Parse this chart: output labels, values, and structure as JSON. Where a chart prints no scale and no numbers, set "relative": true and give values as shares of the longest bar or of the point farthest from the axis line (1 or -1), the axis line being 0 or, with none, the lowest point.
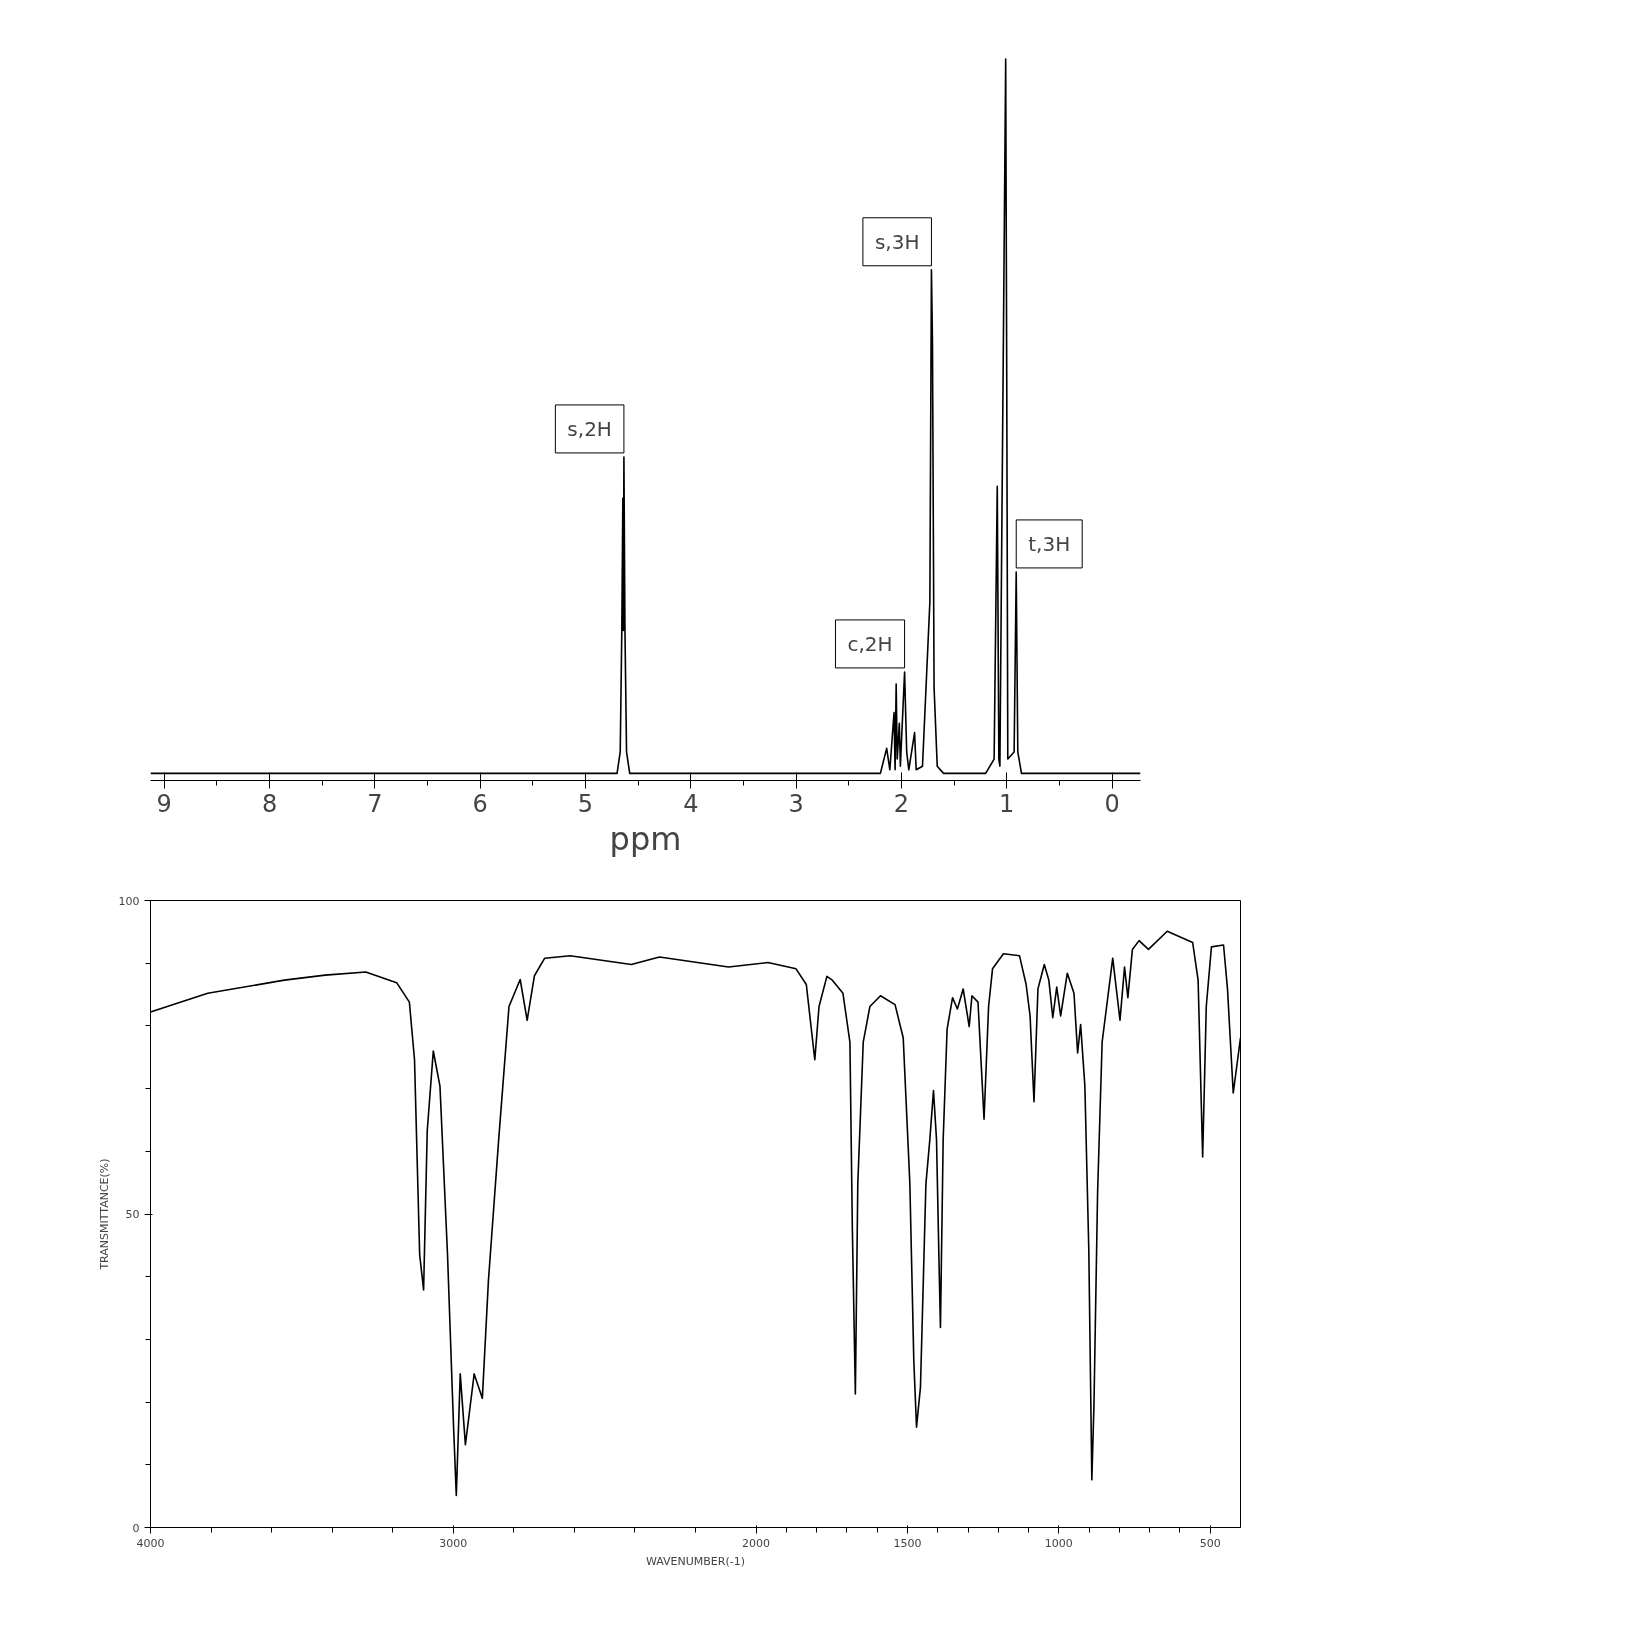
{
  "chart_data": [
    {
      "type": "line",
      "relative": true,
      "xlabel": "ppm",
      "xlim": [
        9.13,
        -0.27
      ],
      "xticks": [
        9,
        {
          "value": 8.5,
          "label": null
        },
        8,
        {
          "value": 7.5,
          "label": null
        },
        7,
        {
          "value": 6.5,
          "label": null
        },
        6,
        {
          "value": 5.5,
          "label": null
        },
        5,
        {
          "value": 4.5,
          "label": null
        },
        4,
        {
          "value": 3.5,
          "label": null
        },
        3,
        {
          "value": 2.5,
          "label": null
        },
        2,
        {
          "value": 1.5,
          "label": null
        },
        1,
        {
          "value": 0.5,
          "label": null
        },
        0
      ],
      "grid": false,
      "line_style": "solid",
      "series": [
        {
          "color": "#000000",
          "x": [
            9.13,
            4.7,
            4.67,
            4.655,
            4.645,
            4.64,
            4.635,
            4.625,
            4.61,
            4.58,
            2.2,
            2.14,
            2.11,
            2.07,
            2.06,
            2.05,
            2.04,
            2.02,
            2.01,
            1.97,
            1.95,
            1.93,
            1.875,
            1.86,
            1.8,
            1.73,
            1.715,
            1.705,
            1.69,
            1.66,
            1.6,
            1.2,
            1.12,
            1.09,
            1.075,
            1.065,
            1.01,
            1.0,
            0.99,
            0.93,
            0.91,
            0.895,
            0.86,
            -0.27
          ],
          "values": [
            0,
            0,
            0.03,
            0.2,
            0.385,
            0.2,
            0.443,
            0.2,
            0.03,
            0,
            0,
            0.035,
            0.005,
            0.085,
            0.005,
            0.125,
            0.02,
            0.07,
            0.01,
            0.142,
            0.03,
            0.005,
            0.057,
            0.005,
            0.01,
            0.24,
            0.705,
            0.6,
            0.12,
            0.01,
            0,
            0,
            0.02,
            0.402,
            0.02,
            0.01,
            1.0,
            0.55,
            0.02,
            0.03,
            0.282,
            0.03,
            0,
            0
          ]
        }
      ],
      "annotations": [
        {
          "text": "s,2H",
          "x": 4.635,
          "y": 0.443
        },
        {
          "text": "c,2H",
          "x": 1.97,
          "y": 0.142
        },
        {
          "text": "s,3H",
          "x": 1.715,
          "y": 0.705
        },
        {
          "text": "t,3H",
          "x": 0.91,
          "y": 0.282
        }
      ]
    },
    {
      "type": "line",
      "xlabel": "WAVENUMBER(-1)",
      "ylabel": "TRANSMITTANCE(%)",
      "xlim": [
        4000,
        400
      ],
      "ylim": [
        0,
        100
      ],
      "xticks": [
        4000,
        {
          "value": 3800,
          "label": null
        },
        {
          "value": 3600,
          "label": null
        },
        {
          "value": 3400,
          "label": null
        },
        {
          "value": 3200,
          "label": null
        },
        3000,
        {
          "value": 2800,
          "label": null
        },
        {
          "value": 2600,
          "label": null
        },
        {
          "value": 2400,
          "label": null
        },
        {
          "value": 2200,
          "label": null
        },
        2000,
        {
          "value": 1900,
          "label": null
        },
        {
          "value": 1800,
          "label": null
        },
        {
          "value": 1700,
          "label": null
        },
        {
          "value": 1600,
          "label": null
        },
        1500,
        {
          "value": 1400,
          "label": null
        },
        {
          "value": 1300,
          "label": null
        },
        {
          "value": 1200,
          "label": null
        },
        {
          "value": 1100,
          "label": null
        },
        1000,
        {
          "value": 900,
          "label": null
        },
        {
          "value": 800,
          "label": null
        },
        {
          "value": 700,
          "label": null
        },
        {
          "value": 600,
          "label": null
        },
        500
      ],
      "yticks": [
        0,
        {
          "value": 10,
          "label": null
        },
        {
          "value": 20,
          "label": null
        },
        {
          "value": 30,
          "label": null
        },
        {
          "value": 40,
          "label": null
        },
        50,
        {
          "value": 60,
          "label": null
        },
        {
          "value": 70,
          "label": null
        },
        {
          "value": 80,
          "label": null
        },
        {
          "value": 90,
          "label": null
        },
        100
      ],
      "grid": false,
      "line_style": "solid",
      "series": [
        {
          "color": "#000000",
          "x": [
            4000,
            3811,
            3558,
            3423,
            3289,
            3187,
            3145,
            3128,
            3111,
            3098,
            3086,
            3066,
            3044,
            3019,
            2999,
            2990,
            2977,
            2960,
            2931,
            2904,
            2884,
            2850,
            2816,
            2779,
            2756,
            2732,
            2698,
            2614,
            2412,
            2319,
            2091,
            1961,
            1868,
            1834,
            1806,
            1792,
            1766,
            1748,
            1713,
            1690,
            1682,
            1672,
            1664,
            1646,
            1624,
            1589,
            1541,
            1514,
            1492,
            1479,
            1470,
            1457,
            1439,
            1426,
            1414,
            1404,
            1395,
            1391,
            1382,
            1369,
            1351,
            1335,
            1316,
            1296,
            1287,
            1267,
            1247,
            1232,
            1219,
            1183,
            1130,
            1108,
            1095,
            1082,
            1069,
            1048,
            1033,
            1020,
            1007,
            994,
            972,
            950,
            938,
            928,
            914,
            901,
            891,
            884,
            872,
            857,
            822,
            798,
            783,
            772,
            757,
            735,
            704,
            642,
            558,
            540,
            525,
            513,
            496,
            456,
            443,
            424,
            400
          ],
          "values": [
            82.2,
            85.2,
            87.3,
            88.1,
            88.6,
            86.9,
            83.8,
            74.6,
            43.5,
            37.9,
            63.3,
            76.0,
            70.4,
            43.5,
            16.0,
            5.1,
            24.5,
            13.2,
            24.5,
            20.6,
            39.3,
            61.9,
            83.1,
            87.4,
            80.9,
            88.0,
            90.8,
            91.2,
            89.8,
            91.0,
            89.4,
            90.1,
            89.1,
            86.6,
            74.6,
            83.1,
            87.9,
            87.3,
            85.2,
            77.4,
            47.8,
            21.3,
            54.8,
            77.4,
            83.1,
            84.8,
            83.4,
            78.1,
            54.8,
            26.6,
            16.0,
            22.4,
            54.8,
            61.9,
            69.7,
            61.9,
            40.7,
            31.9,
            61.9,
            79.5,
            84.5,
            82.7,
            85.9,
            79.9,
            84.8,
            83.8,
            65.1,
            83.1,
            89.1,
            91.5,
            91.2,
            86.6,
            81.6,
            67.9,
            85.9,
            89.8,
            87.3,
            81.3,
            86.2,
            81.6,
            88.4,
            85.2,
            75.7,
            80.2,
            70.4,
            44.2,
            7.6,
            19.5,
            53.4,
            77.4,
            90.8,
            80.9,
            89.4,
            84.5,
            92.2,
            93.6,
            92.2,
            95.1,
            93.3,
            87.3,
            59.1,
            83.1,
            92.6,
            92.9,
            85.9,
            69.3,
            78.1
          ]
        }
      ]
    }
  ]
}
